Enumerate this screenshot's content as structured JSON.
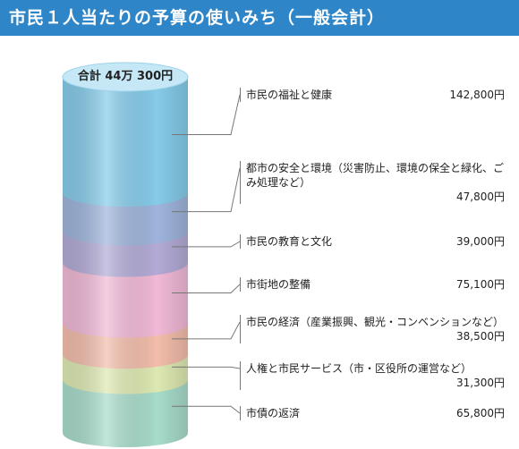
{
  "title": "市民１人当たりの予算の使いみち（一般会計）",
  "chart_data": {
    "type": "bar",
    "subtype": "stacked-cylinder",
    "total_label": "合計 44万 300円",
    "total": 440300,
    "unit": "円",
    "segments": [
      {
        "name": "市民の福祉と健康",
        "value": 142800,
        "value_label": "142,800円",
        "color": "#86cbe9"
      },
      {
        "name": "都市の安全と環境",
        "detail": "（災害防止、環境の保全と緑化、ごみ処理など）",
        "value": 47800,
        "value_label": "47,800円",
        "color": "#9fb5dc"
      },
      {
        "name": "市民の教育と文化",
        "value": 39000,
        "value_label": "39,000円",
        "color": "#b3abd6"
      },
      {
        "name": "市街地の整備",
        "value": 75100,
        "value_label": "75,100円",
        "color": "#f1b9d6"
      },
      {
        "name": "市民の経済",
        "detail": "（産業振興、観光・コンベンションなど）",
        "value": 38500,
        "value_label": "38,500円",
        "color": "#f3bdab"
      },
      {
        "name": "人権と市民サービス",
        "detail": "（市・区役所の運営など）",
        "value": 31300,
        "value_label": "31,300円",
        "color": "#dde9b2"
      },
      {
        "name": "市債の返済",
        "value": 65800,
        "value_label": "65,800円",
        "color": "#a8dcca"
      }
    ]
  }
}
